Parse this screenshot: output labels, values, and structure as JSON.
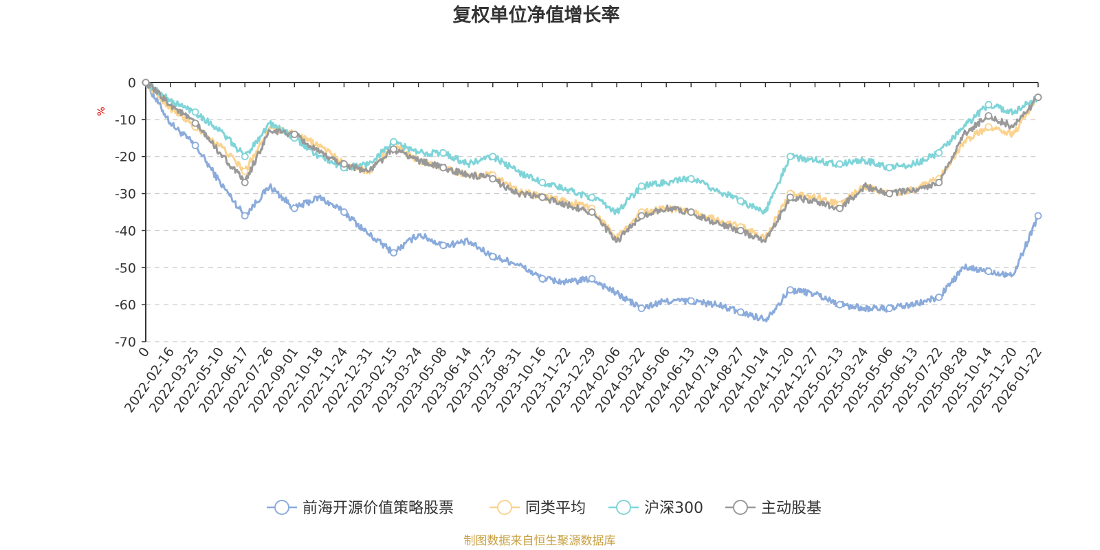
{
  "title": "复权单位净值增长率",
  "source": "制图数据来自恒生聚源数据库",
  "chart_data": {
    "type": "line",
    "title": "复权单位净值增长率",
    "ylabel": "%",
    "ylim": [
      -70,
      0
    ],
    "yticks": [
      0,
      -10,
      -20,
      -30,
      -40,
      -50,
      -60,
      -70
    ],
    "grid": true,
    "legend_position": "bottom-center",
    "x_tick_labels": [
      "0",
      "2022-02-16",
      "2022-03-25",
      "2022-05-10",
      "2022-06-17",
      "2022-07-26",
      "2022-09-01",
      "2022-10-18",
      "2022-11-24",
      "2022-12-31",
      "2023-02-15",
      "2023-03-24",
      "2023-05-08",
      "2023-06-14",
      "2023-07-25",
      "2023-08-31",
      "2023-10-16",
      "2023-11-22",
      "2023-12-29",
      "2024-02-06",
      "2024-03-22",
      "2024-05-06",
      "2024-06-13",
      "2024-07-19",
      "2024-08-27",
      "2024-10-14",
      "2024-11-20",
      "2024-12-27",
      "2025-02-13",
      "2025-03-24",
      "2025-05-06",
      "2025-06-13",
      "2025-07-22",
      "2025-08-28",
      "2025-10-14",
      "2025-11-20",
      "2026-01-22"
    ],
    "series": [
      {
        "name": "前海开源价值策略股票",
        "color": "#8aabdb",
        "values": [
          0,
          -11,
          -17,
          -27,
          -36,
          -28,
          -34,
          -31,
          -35,
          -41,
          -46,
          -41,
          -44,
          -43,
          -47,
          -49,
          -53,
          -54,
          -53,
          -57,
          -61,
          -59,
          -59,
          -60,
          -62,
          -64,
          -56,
          -57,
          -60,
          -61,
          -61,
          -60,
          -58,
          -50,
          -51,
          -52,
          -36
        ]
      },
      {
        "name": "同类平均",
        "color": "#fbd38e",
        "values": [
          0,
          -7,
          -12,
          -17,
          -24,
          -12,
          -14,
          -17,
          -22,
          -24,
          -17,
          -21,
          -23,
          -25,
          -25,
          -29,
          -31,
          -32,
          -34,
          -42,
          -35,
          -34,
          -35,
          -37,
          -39,
          -42,
          -30,
          -31,
          -33,
          -28,
          -30,
          -29,
          -26,
          -16,
          -12,
          -14,
          -4
        ]
      },
      {
        "name": "沪深300",
        "color": "#7fd4d8",
        "values": [
          0,
          -5,
          -8,
          -13,
          -20,
          -11,
          -15,
          -20,
          -23,
          -22,
          -16,
          -19,
          -19,
          -22,
          -20,
          -24,
          -27,
          -29,
          -31,
          -35,
          -28,
          -27,
          -26,
          -29,
          -32,
          -35,
          -20,
          -21,
          -22,
          -21,
          -23,
          -22,
          -19,
          -12,
          -6,
          -8,
          -4
        ]
      },
      {
        "name": "主动股基",
        "color": "#999999",
        "values": [
          0,
          -6,
          -11,
          -19,
          -27,
          -13,
          -14,
          -19,
          -22,
          -24,
          -18,
          -21,
          -23,
          -25,
          -26,
          -30,
          -31,
          -33,
          -35,
          -43,
          -36,
          -34,
          -35,
          -38,
          -40,
          -43,
          -31,
          -32,
          -34,
          -28,
          -30,
          -29,
          -27,
          -14,
          -9,
          -12,
          -4
        ]
      }
    ]
  }
}
